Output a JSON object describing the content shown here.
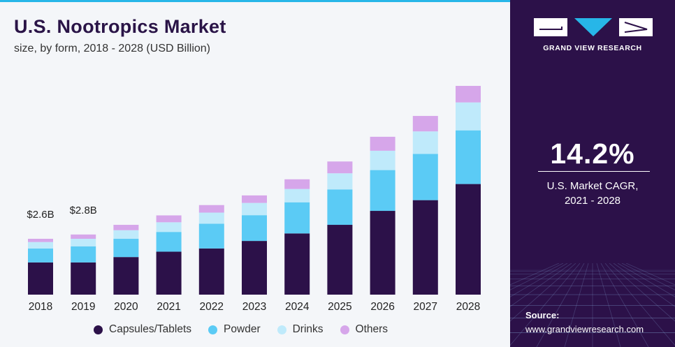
{
  "header": {
    "title": "U.S. Nootropics Market",
    "subtitle": "size, by form, 2018 - 2028 (USD Billion)"
  },
  "chart_data": {
    "type": "bar",
    "stacked": true,
    "categories": [
      "2018",
      "2019",
      "2020",
      "2021",
      "2022",
      "2023",
      "2024",
      "2025",
      "2026",
      "2027",
      "2028"
    ],
    "series": [
      {
        "name": "Capsules/Tablets",
        "color": "#2c1149",
        "values": [
          1.5,
          1.5,
          1.75,
          2.0,
          2.15,
          2.5,
          2.85,
          3.25,
          3.9,
          4.4,
          5.15
        ]
      },
      {
        "name": "Powder",
        "color": "#5bcbf5",
        "values": [
          0.65,
          0.75,
          0.85,
          0.92,
          1.15,
          1.2,
          1.45,
          1.65,
          1.9,
          2.15,
          2.5
        ]
      },
      {
        "name": "Drinks",
        "color": "#bfeafb",
        "values": [
          0.3,
          0.35,
          0.4,
          0.45,
          0.52,
          0.57,
          0.62,
          0.75,
          0.9,
          1.05,
          1.3
        ]
      },
      {
        "name": "Others",
        "color": "#d6a6ea",
        "values": [
          0.15,
          0.2,
          0.25,
          0.32,
          0.35,
          0.35,
          0.45,
          0.55,
          0.65,
          0.72,
          0.77
        ]
      }
    ],
    "data_labels": [
      {
        "category": "2018",
        "text": "$2.6B"
      },
      {
        "category": "2019",
        "text": "$2.8B"
      }
    ],
    "ylim": [
      0,
      10.5
    ],
    "title": "U.S. Nootropics Market",
    "subtitle": "size, by form, 2018 - 2028 (USD Billion)",
    "xlabel": "",
    "ylabel": "",
    "grid": false,
    "legend_position": "bottom"
  },
  "side_panel": {
    "brand_name": "GRAND VIEW RESEARCH",
    "cagr_value": "14.2%",
    "cagr_label_line1": "U.S. Market CAGR,",
    "cagr_label_line2": "2021 - 2028",
    "source_label": "Source:",
    "source_url": "www.grandviewresearch.com"
  },
  "colors": {
    "panel_bg": "#2c1149",
    "accent": "#27b6e8",
    "title": "#2a1447"
  }
}
